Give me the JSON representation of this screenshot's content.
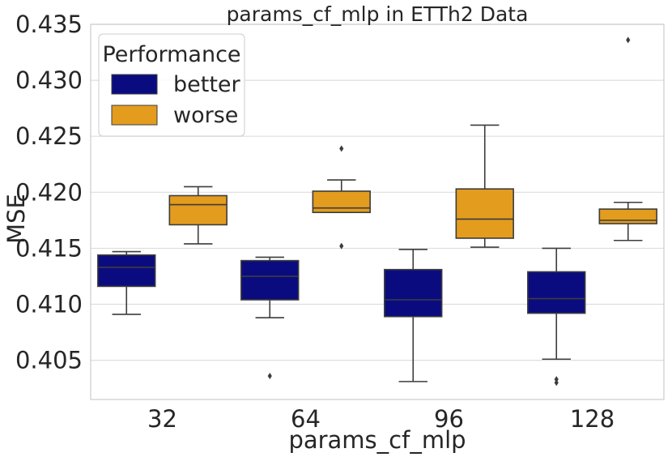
{
  "chart_data": {
    "type": "box",
    "title": "params_cf_mlp in ETTh2 Data",
    "xlabel": "params_cf_mlp",
    "ylabel": "MSE",
    "categories": [
      "32",
      "64",
      "96",
      "128"
    ],
    "ylim": [
      0.4015,
      0.435
    ],
    "yticks": [
      0.405,
      0.41,
      0.415,
      0.42,
      0.425,
      0.43,
      0.435
    ],
    "ytick_labels": [
      "0.405",
      "0.410",
      "0.415",
      "0.420",
      "0.425",
      "0.430",
      "0.435"
    ],
    "grid": true,
    "legend": {
      "title": "Performance",
      "position": "top-left"
    },
    "series": [
      {
        "name": "better",
        "color": "#0b0b80",
        "boxes": [
          {
            "whisker_low": 0.4091,
            "q1": 0.4116,
            "median": 0.4133,
            "q3": 0.4144,
            "whisker_high": 0.4147,
            "outliers": []
          },
          {
            "whisker_low": 0.4088,
            "q1": 0.4104,
            "median": 0.4125,
            "q3": 0.4139,
            "whisker_high": 0.4142,
            "outliers": [
              0.4036
            ]
          },
          {
            "whisker_low": 0.4031,
            "q1": 0.4089,
            "median": 0.4104,
            "q3": 0.4131,
            "whisker_high": 0.4149,
            "outliers": []
          },
          {
            "whisker_low": 0.4051,
            "q1": 0.4092,
            "median": 0.4105,
            "q3": 0.4129,
            "whisker_high": 0.415,
            "outliers": [
              0.403,
              0.4033
            ]
          }
        ]
      },
      {
        "name": "worse",
        "color": "#e39c1e",
        "boxes": [
          {
            "whisker_low": 0.4154,
            "q1": 0.4171,
            "median": 0.4189,
            "q3": 0.4197,
            "whisker_high": 0.4205,
            "outliers": []
          },
          {
            "whisker_low": 0.4182,
            "q1": 0.4182,
            "median": 0.4186,
            "q3": 0.4201,
            "whisker_high": 0.4211,
            "outliers": [
              0.4152,
              0.4239
            ]
          },
          {
            "whisker_low": 0.4151,
            "q1": 0.4159,
            "median": 0.4176,
            "q3": 0.4203,
            "whisker_high": 0.426,
            "outliers": []
          },
          {
            "whisker_low": 0.4157,
            "q1": 0.4172,
            "median": 0.4175,
            "q3": 0.4185,
            "whisker_high": 0.4191,
            "outliers": [
              0.4336
            ]
          }
        ]
      }
    ]
  }
}
